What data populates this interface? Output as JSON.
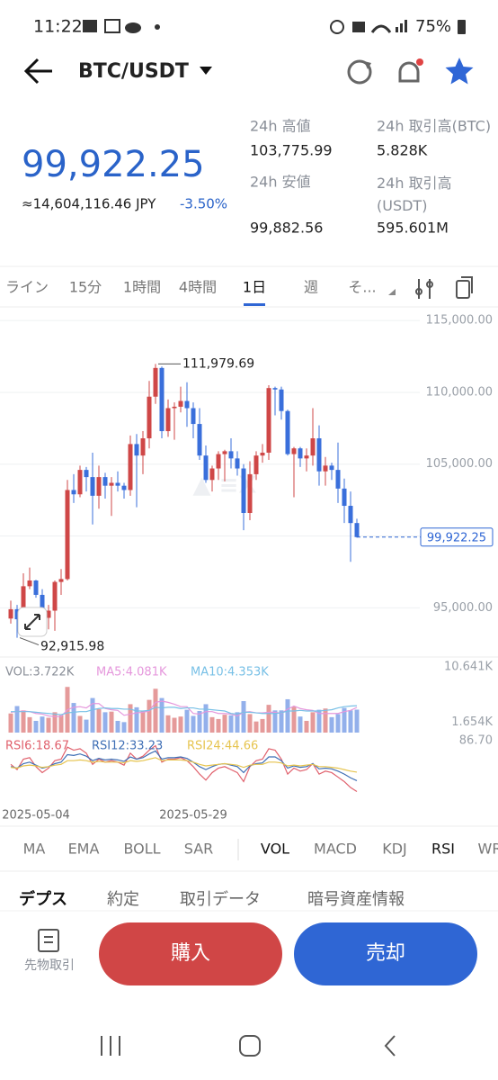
{
  "status_bar": {
    "time": "11:22",
    "battery": "75%"
  },
  "header": {
    "pair": "BTC/USDT"
  },
  "ticker": {
    "last_price": "99,922.25",
    "fiat_price": "≈14,604,116.46 JPY",
    "change": "-3.50%",
    "stats": [
      {
        "label": "24h 高値",
        "value": "103,775.99"
      },
      {
        "label": "24h 取引高(BTC)",
        "value": "5.828K"
      },
      {
        "label": "24h 安値",
        "value": "99,882.56"
      },
      {
        "label": "24h 取引高(USDT)",
        "value": "595.601M"
      }
    ]
  },
  "timeframes": {
    "items": [
      "ライン",
      "15分",
      "1時間",
      "4時間",
      "1日",
      "週",
      "そ..."
    ],
    "active": 4
  },
  "chart_data": {
    "type": "candlestick",
    "categories": [
      null,
      null,
      null,
      null,
      null,
      "2025-05-04",
      null,
      null,
      null,
      null,
      null,
      null,
      null,
      null,
      null,
      null,
      null,
      null,
      null,
      null,
      null,
      null,
      null,
      null,
      null,
      null,
      null,
      null,
      null,
      null,
      "2025-05-29",
      null,
      null,
      null,
      null,
      null,
      null,
      null,
      null,
      null,
      null,
      null,
      null,
      null,
      null,
      null,
      null,
      null,
      null,
      null,
      null,
      null,
      null,
      null,
      null,
      null
    ],
    "open": [
      94250,
      94900,
      94200,
      96500,
      96900,
      95900,
      94300,
      94800,
      96800,
      97000,
      103200,
      102900,
      104600,
      104100,
      102800,
      104100,
      103500,
      103700,
      103500,
      103200,
      106400,
      105600,
      106800,
      109700,
      111700,
      107300,
      108900,
      109000,
      109400,
      108900,
      107800,
      105600,
      103900,
      104700,
      105700,
      105900,
      105400,
      104700,
      101600,
      104300,
      105600,
      105800,
      110300,
      110200,
      108700,
      105700,
      106100,
      105400,
      105600,
      106800,
      104500,
      104900,
      104600,
      103300,
      102100,
      100900
    ],
    "high": [
      95500,
      95200,
      97400,
      97800,
      96950,
      96300,
      95200,
      96900,
      97700,
      103900,
      104300,
      104900,
      104800,
      105800,
      104900,
      104400,
      104100,
      104500,
      103700,
      107000,
      107100,
      107300,
      110800,
      111979.69,
      111800,
      109500,
      109300,
      110400,
      110700,
      109300,
      108900,
      106300,
      104900,
      105900,
      106000,
      106800,
      105900,
      105000,
      105200,
      105900,
      106400,
      110500,
      110400,
      110400,
      108800,
      106200,
      106200,
      106100,
      108900,
      107700,
      105500,
      105100,
      106500,
      104000,
      103100,
      101200
    ],
    "low": [
      93900,
      92915.98,
      94100,
      96300,
      95700,
      94200,
      93500,
      93400,
      95900,
      96900,
      102300,
      102700,
      103100,
      100800,
      101900,
      102600,
      101400,
      103100,
      102600,
      102800,
      102000,
      104300,
      106100,
      109200,
      106800,
      106900,
      106700,
      108600,
      107600,
      106800,
      105300,
      103700,
      103100,
      103900,
      103800,
      104700,
      104200,
      100400,
      101100,
      103900,
      105100,
      105300,
      108400,
      108100,
      105600,
      102700,
      104800,
      104500,
      104900,
      103500,
      103500,
      103900,
      102300,
      100900,
      98200,
      99882.56
    ],
    "close": [
      94900,
      94200,
      96500,
      96900,
      95900,
      94300,
      94800,
      96800,
      97000,
      103200,
      102900,
      104600,
      104100,
      102800,
      104100,
      103500,
      103700,
      103500,
      103200,
      106400,
      105600,
      106800,
      109700,
      111700,
      107300,
      108900,
      109000,
      109400,
      108900,
      107800,
      105600,
      103900,
      104700,
      105700,
      105900,
      105400,
      104700,
      101600,
      104300,
      105600,
      105800,
      110300,
      110200,
      108700,
      105700,
      106100,
      105400,
      105600,
      106800,
      104500,
      104900,
      104600,
      103300,
      102100,
      100900,
      99922.25
    ],
    "up_color": "#cf4747",
    "down_color": "#3a6fdb",
    "ylim": [
      92200,
      115700
    ],
    "yticks": [
      {
        "value": 95000,
        "label": "95,000.00"
      },
      {
        "value": 100000,
        "label": "100,000.00"
      },
      {
        "value": 105000,
        "label": "105,000.00"
      },
      {
        "value": 110000,
        "label": "110,000.00"
      },
      {
        "value": 115000,
        "label": "115,000.00"
      }
    ],
    "grid": true,
    "max_label": {
      "value": 111979.69,
      "label": "111,979.69"
    },
    "min_label": {
      "value": 92915.98,
      "label": "92,915.98"
    },
    "last_label": {
      "value": 99922.25,
      "label": "99,922.25"
    },
    "volume": {
      "values": [
        3100,
        4300,
        3600,
        2500,
        1900,
        2600,
        2400,
        3300,
        2800,
        7400,
        4800,
        2700,
        2100,
        5600,
        3800,
        3300,
        3400,
        1900,
        1700,
        4600,
        4100,
        3500,
        5300,
        7100,
        5600,
        2800,
        2400,
        2600,
        3700,
        2700,
        3500,
        4600,
        2500,
        2200,
        2900,
        2800,
        3300,
        5100,
        3000,
        1800,
        2200,
        4500,
        3600,
        3600,
        5400,
        4200,
        2600,
        1900,
        3300,
        3700,
        3900,
        2500,
        3000,
        4000,
        3600,
        3722
      ],
      "ma5": [
        3300,
        3400,
        3500,
        3400,
        3100,
        3000,
        2700,
        2600,
        2600,
        3700,
        4100,
        4200,
        4000,
        4700,
        4700,
        3900,
        3700,
        3600,
        2800,
        3000,
        3200,
        3300,
        3500,
        4900,
        5100,
        4900,
        4600,
        4200,
        4200,
        3100,
        3000,
        3400,
        3400,
        3100,
        3100,
        3000,
        2700,
        3300,
        3400,
        3200,
        3200,
        3300,
        3300,
        3100,
        3800,
        4300,
        3900,
        3700,
        3600,
        3100,
        3100,
        3100,
        3100,
        3400,
        3600,
        4081
      ],
      "ma10": [
        3400,
        3400,
        3400,
        3400,
        3300,
        3200,
        3100,
        3000,
        2900,
        3200,
        3300,
        3400,
        3400,
        3700,
        3900,
        4000,
        3900,
        3900,
        3800,
        3800,
        3500,
        3500,
        3600,
        4100,
        4000,
        4100,
        4100,
        3900,
        4000,
        4000,
        3800,
        3800,
        3700,
        3600,
        3500,
        3100,
        3000,
        3300,
        3300,
        3200,
        3100,
        3100,
        3100,
        3200,
        3500,
        3500,
        3600,
        3500,
        3500,
        3500,
        3600,
        3700,
        4000,
        4200,
        4300,
        4353
      ],
      "ylim": [
        0,
        10641
      ],
      "yticks": [
        {
          "value": 1654,
          "label": "1.654K"
        },
        {
          "value": 10641,
          "label": "10.641K"
        }
      ],
      "legend": [
        "VOL:3.722K",
        "MA5:4.081K",
        "MA10:4.353K"
      ],
      "ma5_color": "#e597dc",
      "ma10_color": "#78c0e6"
    },
    "rsi": {
      "series": [
        {
          "name": "RSI6:18.67",
          "color": "#e0606c",
          "values": [
            55,
            48,
            62,
            64,
            52,
            44,
            50,
            60,
            62,
            78,
            74,
            76,
            70,
            55,
            62,
            58,
            60,
            58,
            54,
            70,
            62,
            66,
            74,
            80,
            58,
            62,
            62,
            64,
            60,
            52,
            42,
            34,
            44,
            50,
            52,
            48,
            44,
            32,
            52,
            60,
            62,
            76,
            74,
            62,
            42,
            50,
            46,
            48,
            56,
            42,
            46,
            44,
            38,
            32,
            24,
            18.67
          ]
        },
        {
          "name": "RSI12:33.23",
          "color": "#3f6fb5",
          "values": [
            52,
            50,
            56,
            58,
            54,
            50,
            52,
            56,
            58,
            68,
            67,
            69,
            66,
            60,
            63,
            61,
            62,
            61,
            59,
            65,
            62,
            64,
            69,
            73,
            62,
            64,
            64,
            65,
            63,
            58,
            52,
            48,
            52,
            55,
            56,
            54,
            52,
            44,
            53,
            56,
            57,
            65,
            65,
            60,
            50,
            53,
            51,
            52,
            56,
            49,
            50,
            49,
            46,
            42,
            37,
            33.23
          ]
        },
        {
          "name": "RSI24:44.66",
          "color": "#e6c44f",
          "values": [
            51,
            50,
            53,
            54,
            53,
            51,
            52,
            54,
            55,
            60,
            60,
            61,
            60,
            58,
            59,
            58,
            58,
            58,
            57,
            60,
            59,
            60,
            62,
            64,
            60,
            61,
            61,
            61,
            60,
            58,
            55,
            53,
            54,
            55,
            56,
            55,
            54,
            51,
            54,
            55,
            55,
            58,
            58,
            57,
            53,
            54,
            53,
            54,
            55,
            52,
            52,
            51,
            50,
            48,
            46,
            44.66
          ]
        }
      ],
      "ylim": [
        0,
        86.7
      ],
      "yticks": [
        {
          "value": 86.7,
          "label": "86.70"
        }
      ]
    }
  },
  "indicators": {
    "items": [
      "MA",
      "EMA",
      "BOLL",
      "SAR",
      "VOL",
      "MACD",
      "KDJ",
      "RSI",
      "WR"
    ],
    "active": [
      4,
      7
    ]
  },
  "tabs": {
    "items": [
      "デプス",
      "約定",
      "取引データ",
      "暗号資産情報"
    ],
    "active": 0
  },
  "actions": {
    "futures": "先物取引",
    "buy": "購入",
    "sell": "売却"
  }
}
